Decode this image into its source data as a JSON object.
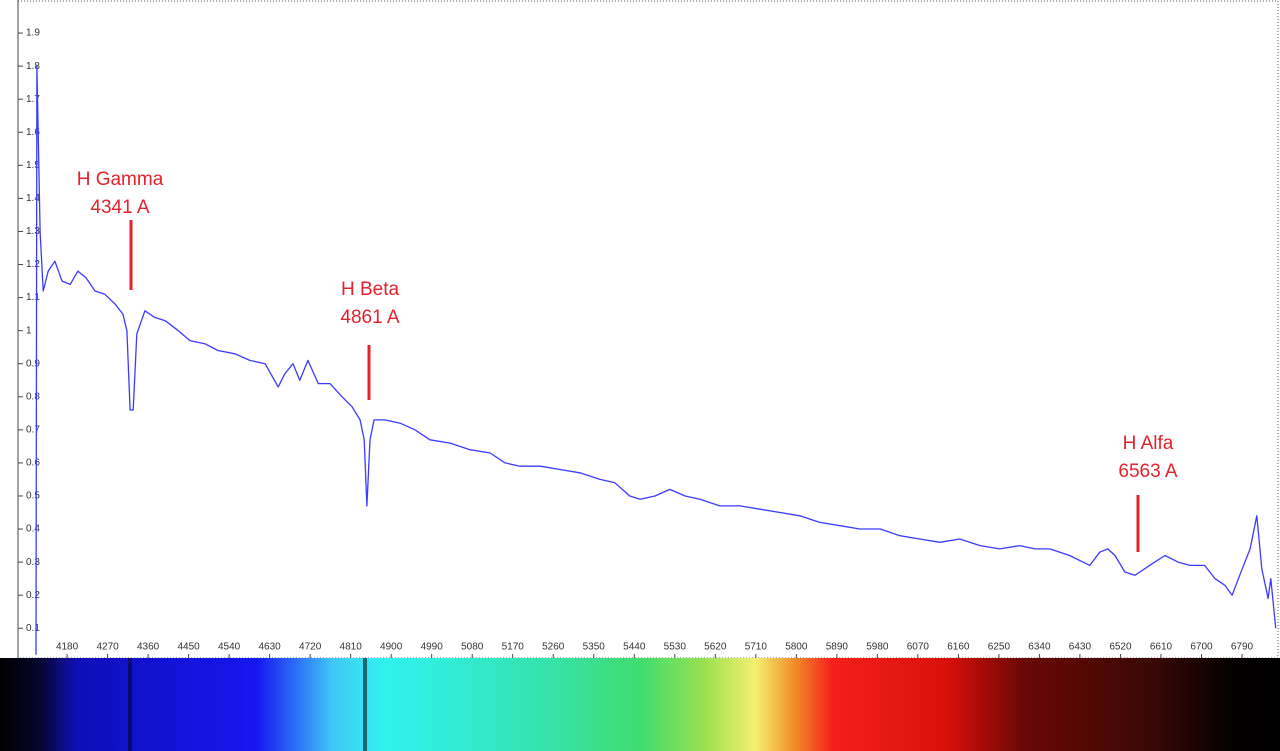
{
  "chart_data": {
    "type": "line",
    "color": "#3b3bff",
    "xlim": [
      4071,
      6870
    ],
    "ylim": [
      0.01,
      2.0
    ],
    "xticks": [
      4180,
      4270,
      4360,
      4450,
      4540,
      4630,
      4720,
      4810,
      4900,
      4990,
      5080,
      5170,
      5260,
      5350,
      5440,
      5530,
      5620,
      5710,
      5800,
      5890,
      5980,
      6070,
      6160,
      6250,
      6340,
      6430,
      6520,
      6610,
      6700,
      6790
    ],
    "yticks": [
      0.1,
      0.2,
      0.3,
      0.4,
      0.5,
      0.6,
      0.7,
      0.8,
      0.9,
      1,
      1.1,
      1.2,
      1.3,
      1.4,
      1.5,
      1.6,
      1.7,
      1.8,
      1.9
    ],
    "x": [
      4111,
      4113,
      4120,
      4127,
      4138,
      4153,
      4169,
      4187,
      4204,
      4222,
      4242,
      4264,
      4287,
      4304,
      4313,
      4320,
      4327,
      4335,
      4353,
      4375,
      4398,
      4427,
      4453,
      4487,
      4515,
      4553,
      4586,
      4620,
      4649,
      4664,
      4682,
      4697,
      4715,
      4738,
      4764,
      4791,
      4813,
      4831,
      4840,
      4846,
      4853,
      4862,
      4886,
      4920,
      4953,
      4986,
      5031,
      5075,
      5120,
      5153,
      5186,
      5231,
      5275,
      5319,
      5364,
      5397,
      5430,
      5453,
      5486,
      5519,
      5553,
      5586,
      5630,
      5675,
      5719,
      5764,
      5808,
      5852,
      5897,
      5941,
      5986,
      6030,
      6074,
      6119,
      6163,
      6208,
      6252,
      6296,
      6330,
      6363,
      6407,
      6452,
      6474,
      6492,
      6508,
      6530,
      6552,
      6574,
      6596,
      6619,
      6648,
      6674,
      6707,
      6730,
      6752,
      6768,
      6785,
      6808,
      6823,
      6834,
      6848,
      6854,
      6865
    ],
    "values": [
      0.02,
      1.8,
      1.3,
      1.12,
      1.18,
      1.21,
      1.15,
      1.14,
      1.18,
      1.16,
      1.12,
      1.11,
      1.08,
      1.05,
      1.0,
      0.76,
      0.76,
      0.99,
      1.06,
      1.04,
      1.03,
      1.0,
      0.97,
      0.96,
      0.94,
      0.93,
      0.91,
      0.9,
      0.83,
      0.87,
      0.9,
      0.85,
      0.91,
      0.84,
      0.84,
      0.8,
      0.77,
      0.73,
      0.67,
      0.47,
      0.67,
      0.73,
      0.73,
      0.72,
      0.7,
      0.67,
      0.66,
      0.64,
      0.63,
      0.6,
      0.59,
      0.59,
      0.58,
      0.57,
      0.55,
      0.54,
      0.5,
      0.49,
      0.5,
      0.52,
      0.5,
      0.49,
      0.47,
      0.47,
      0.46,
      0.45,
      0.44,
      0.42,
      0.41,
      0.4,
      0.4,
      0.38,
      0.37,
      0.36,
      0.37,
      0.35,
      0.34,
      0.35,
      0.34,
      0.34,
      0.32,
      0.29,
      0.33,
      0.34,
      0.32,
      0.27,
      0.26,
      0.28,
      0.3,
      0.32,
      0.3,
      0.29,
      0.29,
      0.25,
      0.23,
      0.2,
      0.26,
      0.34,
      0.44,
      0.28,
      0.19,
      0.25,
      0.1
    ],
    "annotations": [
      {
        "label": "H Gamma",
        "sublabel": "4341 A"
      },
      {
        "label": "H Beta",
        "sublabel": "4861 A"
      },
      {
        "label": "H Alfa",
        "sublabel": "6563 A"
      }
    ]
  }
}
